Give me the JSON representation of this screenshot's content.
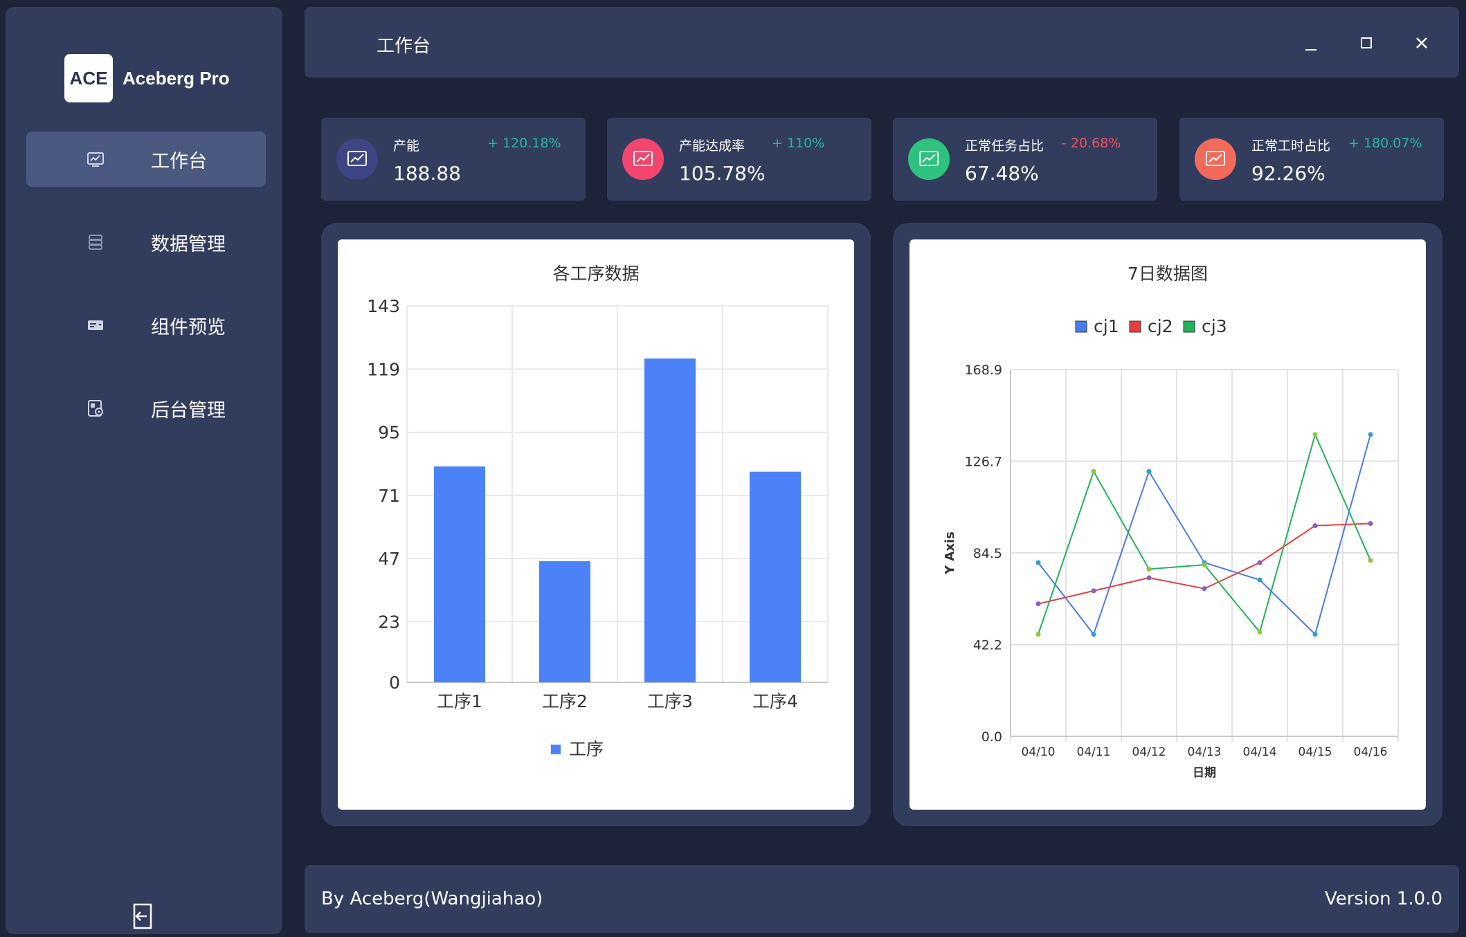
{
  "app": {
    "logo_text": "ACE",
    "name": "Aceberg Pro"
  },
  "sidebar": {
    "items": [
      {
        "label": "工作台",
        "icon": "dashboard-icon",
        "active": true
      },
      {
        "label": "数据管理",
        "icon": "database-icon",
        "active": false
      },
      {
        "label": "组件预览",
        "icon": "components-icon",
        "active": false
      },
      {
        "label": "后台管理",
        "icon": "admin-icon",
        "active": false
      }
    ],
    "logout_icon": "logout-icon"
  },
  "header": {
    "title": "工作台",
    "controls": {
      "minimize": "_",
      "maximize": "□",
      "close": "✕"
    }
  },
  "stats": [
    {
      "label": "产能",
      "change": "+ 120.18%",
      "value": "188.88",
      "color": "#3d4585",
      "change_color": "#2ab3a0"
    },
    {
      "label": "产能达成率",
      "change": "+ 110%",
      "value": "105.78%",
      "color": "#f2466e",
      "change_color": "#2ab3a0"
    },
    {
      "label": "正常任务占比",
      "change": "- 20.68%",
      "value": "67.48%",
      "color": "#2ec27e",
      "change_color": "#f0505e"
    },
    {
      "label": "正常工时占比",
      "change": "+ 180.07%",
      "value": "92.26%",
      "color": "#f26a5a",
      "change_color": "#2ab3a0"
    }
  ],
  "chart_data": [
    {
      "type": "bar",
      "title": "各工序数据",
      "categories": [
        "工序1",
        "工序2",
        "工序3",
        "工序4"
      ],
      "series": [
        {
          "name": "工序",
          "values": [
            82,
            46,
            123,
            80
          ],
          "color": "#4b82f7"
        }
      ],
      "ylim": [
        0,
        143
      ],
      "yticks": [
        "0",
        "23",
        "47",
        "71",
        "95",
        "119",
        "143"
      ],
      "grid": true,
      "legend": "bottom"
    },
    {
      "type": "line",
      "title": "7日数据图",
      "x": [
        "04/10",
        "04/11",
        "04/12",
        "04/13",
        "04/14",
        "04/15",
        "04/16"
      ],
      "xlabel": "日期",
      "ylabel": "Y Axis",
      "ylim": [
        0,
        168.9
      ],
      "yticks": [
        "0.0",
        "42.2",
        "84.5",
        "126.7",
        "168.9"
      ],
      "series": [
        {
          "name": "cj1",
          "color": "#4a7bec",
          "values": [
            80,
            47,
            122,
            80,
            72,
            47,
            139
          ]
        },
        {
          "name": "cj2",
          "color": "#e84040",
          "values": [
            61,
            67,
            73,
            68,
            80,
            97,
            98
          ]
        },
        {
          "name": "cj3",
          "color": "#22b25a",
          "values": [
            47,
            122,
            77,
            79,
            48,
            139,
            81
          ]
        }
      ],
      "grid": true,
      "legend": "top"
    }
  ],
  "footer": {
    "credit": "By Aceberg(Wangjiahao)",
    "version": "Version 1.0.0"
  }
}
